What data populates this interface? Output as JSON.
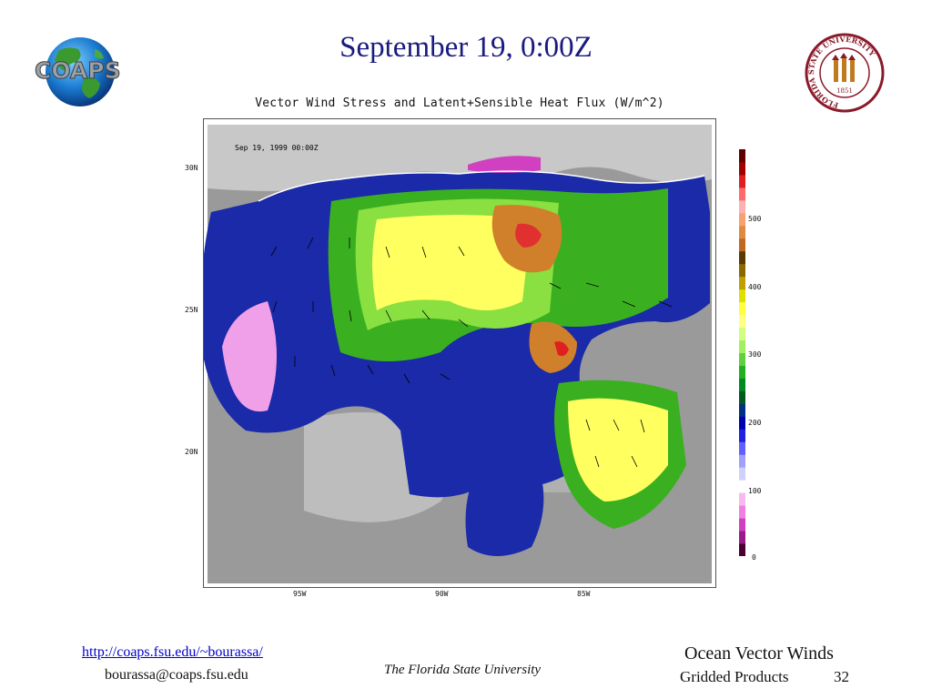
{
  "slide": {
    "title": "September 19, 0:00Z",
    "colors": {
      "title": "#1a1a80",
      "link": "#0000cc"
    }
  },
  "logos": {
    "left": {
      "text": "COAPS",
      "icon": "globe-icon"
    },
    "right": {
      "ring_text": "FLORIDA STATE UNIVERSITY",
      "year": "1851",
      "icon": "university-seal-icon"
    }
  },
  "figure": {
    "title": "Vector Wind Stress and Latent+Sensible Heat Flux (W/m^2)",
    "timestamp": "Sep 19, 1999 00:00Z",
    "lat_labels": [
      "30N",
      "25N",
      "20N"
    ],
    "lon_labels": [
      "95W",
      "90W",
      "85W"
    ],
    "colorbar": {
      "labels": [
        "500",
        "400",
        "300",
        "200",
        "100",
        "0"
      ],
      "min": 0,
      "max": 575,
      "colors_bottom_to_top": [
        "#4a0030",
        "#9a1a8a",
        "#d040c0",
        "#f080e0",
        "#f8b8f0",
        "#ffffff",
        "#d0d0ff",
        "#a0a0ff",
        "#6060ff",
        "#2020e0",
        "#0000b0",
        "#003080",
        "#005a20",
        "#008a20",
        "#20b020",
        "#60d040",
        "#a0f060",
        "#d0ff80",
        "#ffff80",
        "#ffff40",
        "#e0e000",
        "#c0a000",
        "#8a6a00",
        "#5a3a00",
        "#c06a20",
        "#e08a40",
        "#f8a070",
        "#ffb0b0",
        "#ff6a6a",
        "#e02020",
        "#a00000",
        "#600000"
      ]
    }
  },
  "footer": {
    "link": "http://coaps.fsu.edu/~bourassa/",
    "email": "bourassa@coaps.fsu.edu",
    "center": "The Florida State University",
    "title": "Ocean Vector Winds",
    "subtitle": "Gridded Products",
    "page": "32"
  }
}
